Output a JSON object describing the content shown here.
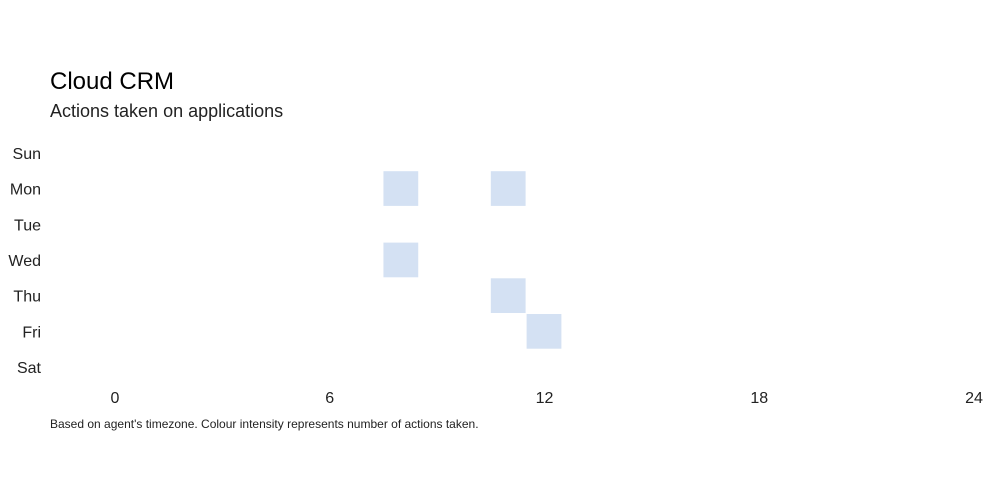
{
  "chart_data": {
    "type": "heatmap",
    "title": "Cloud CRM",
    "subtitle": "Actions taken on applications",
    "footnote": "Based on agent's timezone. Colour intensity represents number of actions taken.",
    "y_categories": [
      "Sun",
      "Mon",
      "Tue",
      "Wed",
      "Thu",
      "Fri",
      "Sat"
    ],
    "x_ticks": [
      0,
      6,
      12,
      18,
      24
    ],
    "xlim": [
      0,
      24
    ],
    "cell_color": "#d4e1f3",
    "cells": [
      {
        "day": "Mon",
        "hour": 8
      },
      {
        "day": "Mon",
        "hour": 11
      },
      {
        "day": "Wed",
        "hour": 8
      },
      {
        "day": "Thu",
        "hour": 11
      },
      {
        "day": "Fri",
        "hour": 12
      }
    ]
  }
}
